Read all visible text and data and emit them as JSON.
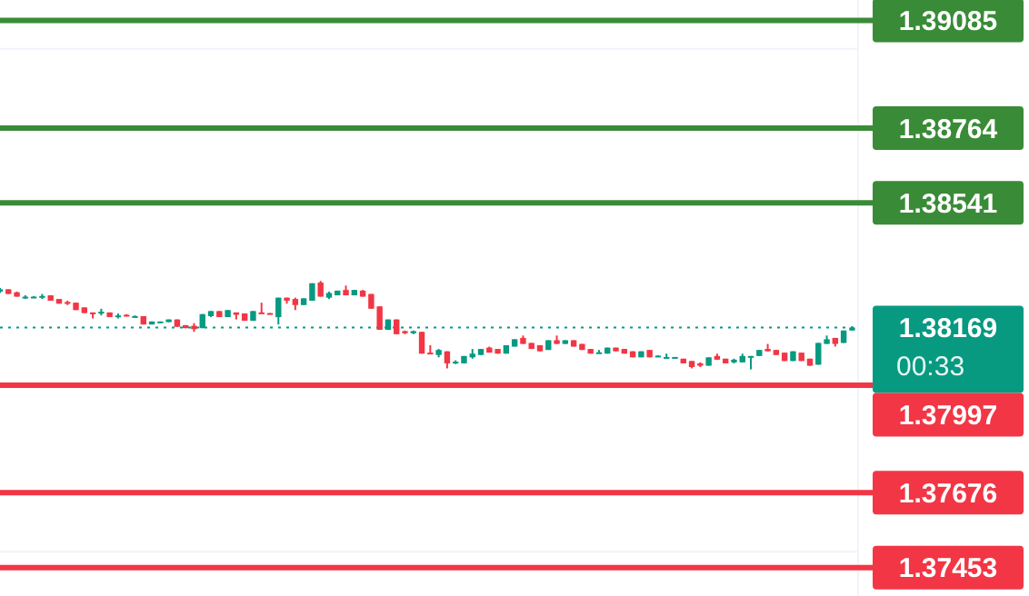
{
  "chart_data": {
    "type": "candlestick",
    "categories": [
      null,
      null,
      null,
      null,
      null,
      null,
      null,
      null,
      null,
      null,
      null,
      null,
      null,
      null,
      null,
      null,
      null,
      null,
      null,
      null,
      null,
      null,
      null,
      null,
      null,
      null,
      null,
      null,
      null,
      null,
      null,
      null,
      null,
      null,
      null,
      null,
      null,
      null,
      null,
      null,
      null,
      null,
      null,
      null,
      null,
      null,
      null,
      null,
      null,
      null,
      null,
      null,
      null,
      null,
      null,
      null,
      null,
      null,
      null,
      null,
      null,
      null,
      null,
      null,
      null,
      null,
      null,
      null,
      null,
      null,
      null,
      null,
      null,
      null,
      null,
      null,
      null,
      null,
      null,
      null,
      null,
      null,
      null,
      null,
      null,
      null,
      null,
      null,
      null,
      null,
      null,
      null,
      null,
      null,
      null,
      null,
      null,
      null,
      null,
      null,
      null,
      null
    ],
    "ohlc": [
      [
        1.38276,
        1.38287,
        1.38272,
        1.38283
      ],
      [
        1.38283,
        1.38283,
        1.38269,
        1.38269
      ],
      [
        1.38274,
        1.38276,
        1.38261,
        1.38261
      ],
      [
        1.38259,
        1.38265,
        1.38254,
        1.38261
      ],
      [
        1.38261,
        1.38263,
        1.38259,
        1.38261
      ],
      [
        1.38259,
        1.38269,
        1.38254,
        1.38263
      ],
      [
        1.38265,
        1.38265,
        1.38249,
        1.38249
      ],
      [
        1.38254,
        1.38254,
        1.3824,
        1.3824
      ],
      [
        1.38245,
        1.38249,
        1.38236,
        1.3824
      ],
      [
        1.38243,
        1.38243,
        1.38221,
        1.38221
      ],
      [
        1.38229,
        1.38229,
        1.38212,
        1.38212
      ],
      [
        1.38214,
        1.38214,
        1.38196,
        1.38211
      ],
      [
        1.38212,
        1.38225,
        1.38205,
        1.38216
      ],
      [
        1.38214,
        1.38214,
        1.382,
        1.382
      ],
      [
        1.38202,
        1.38211,
        1.38196,
        1.38205
      ],
      [
        1.38207,
        1.38209,
        1.38202,
        1.38202
      ],
      [
        1.38202,
        1.38205,
        1.38202,
        1.38203
      ],
      [
        1.38203,
        1.38203,
        1.38178,
        1.38178
      ],
      [
        1.38178,
        1.38187,
        1.38178,
        1.38187
      ],
      [
        1.38183,
        1.38187,
        1.38183,
        1.38187
      ],
      [
        1.38185,
        1.38193,
        1.38185,
        1.38193
      ],
      [
        1.38193,
        1.38193,
        1.38171,
        1.38171
      ],
      [
        1.38176,
        1.38176,
        1.38167,
        1.38167
      ],
      [
        1.38174,
        1.38182,
        1.38156,
        1.38164
      ],
      [
        1.38167,
        1.38209,
        1.38167,
        1.38209
      ],
      [
        1.38203,
        1.38218,
        1.382,
        1.38218
      ],
      [
        1.38218,
        1.38218,
        1.382,
        1.382
      ],
      [
        1.382,
        1.38221,
        1.382,
        1.38221
      ],
      [
        1.38214,
        1.38214,
        1.38193,
        1.38207
      ],
      [
        1.38211,
        1.38211,
        1.38189,
        1.38189
      ],
      [
        1.38189,
        1.38218,
        1.38189,
        1.38218
      ],
      [
        1.38214,
        1.38243,
        1.38211,
        1.38211
      ],
      [
        1.38212,
        1.38212,
        1.38209,
        1.38209
      ],
      [
        1.382,
        1.38258,
        1.38178,
        1.38258
      ],
      [
        1.38258,
        1.38258,
        1.3824,
        1.38249
      ],
      [
        1.38254,
        1.38258,
        1.38221,
        1.38236
      ],
      [
        1.38236,
        1.38256,
        1.38236,
        1.38256
      ],
      [
        1.38249,
        1.38301,
        1.38249,
        1.38301
      ],
      [
        1.38303,
        1.38308,
        1.38261,
        1.38261
      ],
      [
        1.38258,
        1.38276,
        1.38254,
        1.38272
      ],
      [
        1.38265,
        1.38279,
        1.38265,
        1.38279
      ],
      [
        1.38281,
        1.38294,
        1.38265,
        1.38265
      ],
      [
        1.38265,
        1.38281,
        1.38265,
        1.38281
      ],
      [
        1.38279,
        1.38281,
        1.38261,
        1.38261
      ],
      [
        1.38269,
        1.38269,
        1.38225,
        1.38225
      ],
      [
        1.38232,
        1.38232,
        1.38162,
        1.38162
      ],
      [
        1.38162,
        1.38193,
        1.38162,
        1.38193
      ],
      [
        1.38193,
        1.38193,
        1.38149,
        1.38149
      ],
      [
        1.38158,
        1.3816,
        1.38149,
        1.38152
      ],
      [
        1.38152,
        1.3816,
        1.38149,
        1.38158
      ],
      [
        1.38156,
        1.38156,
        1.38091,
        1.38091
      ],
      [
        1.38094,
        1.38116,
        1.38091,
        1.38091
      ],
      [
        1.38087,
        1.38105,
        1.3808,
        1.38102
      ],
      [
        1.38098,
        1.38098,
        1.38047,
        1.38062
      ],
      [
        1.38065,
        1.38071,
        1.3806,
        1.38067
      ],
      [
        1.38062,
        1.38084,
        1.38062,
        1.38084
      ],
      [
        1.3808,
        1.38105,
        1.38076,
        1.38091
      ],
      [
        1.38087,
        1.38105,
        1.38087,
        1.38105
      ],
      [
        1.38109,
        1.38112,
        1.38094,
        1.38094
      ],
      [
        1.38105,
        1.38105,
        1.38091,
        1.38091
      ],
      [
        1.38091,
        1.38116,
        1.38091,
        1.38116
      ],
      [
        1.38112,
        1.38134,
        1.38112,
        1.38134
      ],
      [
        1.38138,
        1.38145,
        1.3812,
        1.3812
      ],
      [
        1.38123,
        1.38123,
        1.38105,
        1.38105
      ],
      [
        1.38116,
        1.38116,
        1.38098,
        1.38098
      ],
      [
        1.38102,
        1.38131,
        1.38102,
        1.38131
      ],
      [
        1.38131,
        1.38145,
        1.3812,
        1.3812
      ],
      [
        1.3812,
        1.38131,
        1.3812,
        1.38131
      ],
      [
        1.38131,
        1.38131,
        1.38112,
        1.38112
      ],
      [
        1.3812,
        1.3812,
        1.38102,
        1.38102
      ],
      [
        1.38105,
        1.38105,
        1.38091,
        1.38091
      ],
      [
        1.38093,
        1.38102,
        1.38093,
        1.38095
      ],
      [
        1.38091,
        1.38109,
        1.38091,
        1.38109
      ],
      [
        1.38109,
        1.38109,
        1.38098,
        1.38098
      ],
      [
        1.38105,
        1.38105,
        1.38091,
        1.38091
      ],
      [
        1.38098,
        1.38098,
        1.3808,
        1.3808
      ],
      [
        1.3808,
        1.38098,
        1.3808,
        1.38098
      ],
      [
        1.38102,
        1.38102,
        1.3808,
        1.3808
      ],
      [
        1.38083,
        1.38086,
        1.38082,
        1.38085
      ],
      [
        1.38079,
        1.38091,
        1.38079,
        1.38081
      ],
      [
        1.38079,
        1.38081,
        1.38078,
        1.38081
      ],
      [
        1.38076,
        1.38076,
        1.38062,
        1.38062
      ],
      [
        1.38069,
        1.38069,
        1.38047,
        1.38051
      ],
      [
        1.38062,
        1.38065,
        1.38051,
        1.38055
      ],
      [
        1.38055,
        1.3808,
        1.38055,
        1.3808
      ],
      [
        1.38084,
        1.38091,
        1.38073,
        1.38073
      ],
      [
        1.38076,
        1.38076,
        1.38062,
        1.38062
      ],
      [
        1.38065,
        1.38076,
        1.38062,
        1.38073
      ],
      [
        1.38065,
        1.38091,
        1.38065,
        1.38084
      ],
      [
        1.3808,
        1.38084,
        1.38044,
        1.38084
      ],
      [
        1.38084,
        1.38102,
        1.38084,
        1.38102
      ],
      [
        1.38105,
        1.3812,
        1.38098,
        1.38098
      ],
      [
        1.38102,
        1.38102,
        1.38087,
        1.38087
      ],
      [
        1.38094,
        1.38094,
        1.38069,
        1.38069
      ],
      [
        1.38069,
        1.38098,
        1.38069,
        1.38098
      ],
      [
        1.38094,
        1.38094,
        1.38069,
        1.38069
      ],
      [
        1.38076,
        1.38076,
        1.38055,
        1.38055
      ],
      [
        1.38058,
        1.38123,
        1.38058,
        1.38123
      ],
      [
        1.3812,
        1.38145,
        1.3812,
        1.38134
      ],
      [
        1.38138,
        1.38138,
        1.38112,
        1.3812
      ],
      [
        1.38123,
        1.3816,
        1.38123,
        1.3816
      ],
      [
        1.3816,
        1.38172,
        1.3816,
        1.38169
      ]
    ],
    "colors": [
      "#089981",
      "#f23645",
      "#f23645",
      "#089981",
      "#089981",
      "#089981",
      "#f23645",
      "#f23645",
      "#f23645",
      "#f23645",
      "#f23645",
      "#f23645",
      "#089981",
      "#f23645",
      "#089981",
      "#f23645",
      "#089981",
      "#f23645",
      "#089981",
      "#089981",
      "#089981",
      "#f23645",
      "#f23645",
      "#f23645",
      "#089981",
      "#089981",
      "#f23645",
      "#089981",
      "#f23645",
      "#f23645",
      "#089981",
      "#f23645",
      "#f23645",
      "#089981",
      "#f23645",
      "#f23645",
      "#089981",
      "#089981",
      "#f23645",
      "#089981",
      "#089981",
      "#f23645",
      "#089981",
      "#f23645",
      "#f23645",
      "#f23645",
      "#089981",
      "#f23645",
      "#f23645",
      "#089981",
      "#f23645",
      "#f23645",
      "#089981",
      "#f23645",
      "#089981",
      "#089981",
      "#089981",
      "#089981",
      "#f23645",
      "#f23645",
      "#089981",
      "#089981",
      "#f23645",
      "#f23645",
      "#f23645",
      "#089981",
      "#f23645",
      "#089981",
      "#f23645",
      "#f23645",
      "#f23645",
      "#089981",
      "#089981",
      "#f23645",
      "#f23645",
      "#f23645",
      "#089981",
      "#f23645",
      "#089981",
      "#089981",
      "#089981",
      "#f23645",
      "#f23645",
      "#f23645",
      "#089981",
      "#f23645",
      "#f23645",
      "#089981",
      "#089981",
      "#089981",
      "#089981",
      "#f23645",
      "#f23645",
      "#f23645",
      "#089981",
      "#f23645",
      "#f23645",
      "#089981",
      "#089981",
      "#f23645",
      "#089981",
      "#089981"
    ],
    "ylim": [
      1.37368,
      1.39146
    ],
    "yticks": [
      {
        "value": 1.39,
        "label": null
      },
      {
        "value": 1.375,
        "label": null
      }
    ],
    "grid": "y",
    "ref_lines": [
      {
        "axis": "y",
        "value": 1.39085,
        "label": "1.39085",
        "color": "#3a8b37"
      },
      {
        "axis": "y",
        "value": 1.38764,
        "label": "1.38764",
        "color": "#3a8b37"
      },
      {
        "axis": "y",
        "value": 1.38541,
        "label": "1.38541",
        "color": "#3a8b37"
      },
      {
        "axis": "y",
        "value": 1.38169,
        "label": "1.38169",
        "color": "#089981",
        "line_style": "dotted"
      },
      {
        "axis": "y",
        "value": 1.37997,
        "label": "1.37997",
        "color": "#f23645"
      },
      {
        "axis": "y",
        "value": 1.37676,
        "label": "1.37676",
        "color": "#f23645"
      },
      {
        "axis": "y",
        "value": 1.37453,
        "label": "1.37453",
        "color": "#f23645"
      }
    ],
    "annotations": [
      "00:33"
    ]
  }
}
